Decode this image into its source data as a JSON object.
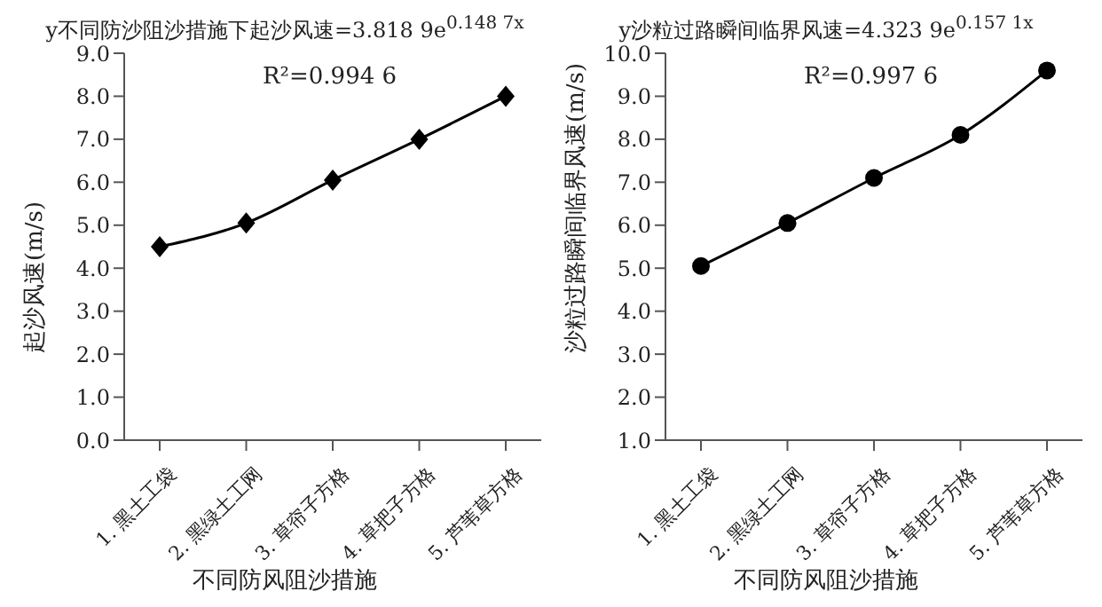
{
  "chart_data": [
    {
      "type": "line",
      "title": "y不同防沙阻沙措施下起沙风速=3.818 9e$^{0.148 7x}$",
      "xlabel": "不同防风阻沙措施",
      "ylabel": "起沙风速(m/s)",
      "categories": [
        "1. 黑土工袋",
        "2. 黑绿土工网",
        "3. 草帘子方格",
        "4. 草把子方格",
        "5. 芦苇草方格"
      ],
      "series": [
        {
          "color": "#000000",
          "values": [
            4.5,
            5.05,
            6.05,
            7.0,
            8.0
          ]
        }
      ],
      "ylim": [
        0,
        9
      ],
      "yticks": [
        {
          "value": 0,
          "label": "0.0"
        },
        {
          "value": 1,
          "label": "1.0"
        },
        {
          "value": 2,
          "label": "2.0"
        },
        {
          "value": 3,
          "label": "3.0"
        },
        {
          "value": 4,
          "label": "4.0"
        },
        {
          "value": 5,
          "label": "5.0"
        },
        {
          "value": 6,
          "label": "6.0"
        },
        {
          "value": 7,
          "label": "7.0"
        },
        {
          "value": 8,
          "label": "8.0"
        },
        {
          "value": 9,
          "label": "9.0"
        }
      ],
      "annotations": [
        "R²=0.994 6"
      ],
      "marker": "diamond",
      "line_style": "solid"
    },
    {
      "type": "line",
      "title": "y沙粒过路瞬间临界风速=4.323 9e$^{0.157 1x}$",
      "xlabel": "不同防风阻沙措施",
      "ylabel": "沙粒过路瞬间临界风速(m/s)",
      "categories": [
        "1. 黑土工袋",
        "2. 黑绿土工网",
        "3. 草帘子方格",
        "4. 草把子方格",
        "5. 芦苇草方格"
      ],
      "series": [
        {
          "color": "#000000",
          "values": [
            5.05,
            6.05,
            7.1,
            8.1,
            9.6
          ]
        }
      ],
      "ylim": [
        1,
        10
      ],
      "yticks": [
        {
          "value": 1,
          "label": "1.0"
        },
        {
          "value": 2,
          "label": "2.0"
        },
        {
          "value": 3,
          "label": "3.0"
        },
        {
          "value": 4,
          "label": "4.0"
        },
        {
          "value": 5,
          "label": "5.0"
        },
        {
          "value": 6,
          "label": "6.0"
        },
        {
          "value": 7,
          "label": "7.0"
        },
        {
          "value": 8,
          "label": "8.0"
        },
        {
          "value": 9,
          "label": "9.0"
        },
        {
          "value": 10,
          "label": "10.0"
        }
      ],
      "annotations": [
        "R²=0.997 6"
      ],
      "marker": "circle",
      "line_style": "solid"
    }
  ]
}
